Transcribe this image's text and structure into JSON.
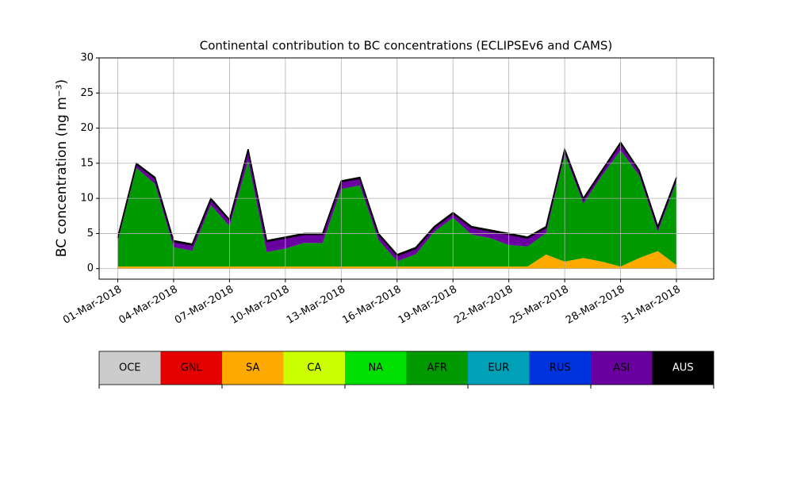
{
  "chart_data": {
    "type": "area",
    "stacked": true,
    "title": "Continental contribution to BC concentrations (ECLIPSEv6 and CAMS)",
    "ylabel": "BC concentration (ng m⁻³)",
    "x": [
      "01-Mar-2018",
      "02-Mar-2018",
      "03-Mar-2018",
      "04-Mar-2018",
      "05-Mar-2018",
      "06-Mar-2018",
      "07-Mar-2018",
      "08-Mar-2018",
      "09-Mar-2018",
      "10-Mar-2018",
      "11-Mar-2018",
      "12-Mar-2018",
      "13-Mar-2018",
      "14-Mar-2018",
      "15-Mar-2018",
      "16-Mar-2018",
      "17-Mar-2018",
      "18-Mar-2018",
      "19-Mar-2018",
      "20-Mar-2018",
      "21-Mar-2018",
      "22-Mar-2018",
      "23-Mar-2018",
      "24-Mar-2018",
      "25-Mar-2018",
      "26-Mar-2018",
      "27-Mar-2018",
      "28-Mar-2018",
      "29-Mar-2018",
      "30-Mar-2018",
      "31-Mar-2018"
    ],
    "xlim": [
      "28-Feb-2018",
      "02-Apr-2018"
    ],
    "xticks": [
      "01-Mar-2018",
      "04-Mar-2018",
      "07-Mar-2018",
      "10-Mar-2018",
      "13-Mar-2018",
      "16-Mar-2018",
      "19-Mar-2018",
      "22-Mar-2018",
      "25-Mar-2018",
      "28-Mar-2018",
      "31-Mar-2018"
    ],
    "ylim": [
      -1.5,
      30
    ],
    "yticks": [
      0,
      5,
      10,
      15,
      20,
      25,
      30
    ],
    "grid": true,
    "series": [
      {
        "name": "OCE",
        "color": "#cccccc",
        "values": [
          0,
          0,
          0,
          0,
          0,
          0,
          0,
          0,
          0,
          0,
          0,
          0,
          0,
          0,
          0,
          0,
          0,
          0,
          0,
          0,
          0,
          0,
          0,
          0,
          0,
          0,
          0,
          0,
          0,
          0,
          0
        ]
      },
      {
        "name": "GNL",
        "color": "#e60000",
        "values": [
          0,
          0,
          0,
          0,
          0,
          0,
          0,
          0,
          0,
          0,
          0,
          0,
          0,
          0,
          0,
          0,
          0,
          0,
          0,
          0,
          0,
          0,
          0,
          0,
          0,
          0,
          0,
          0,
          0,
          0,
          0
        ]
      },
      {
        "name": "SA",
        "color": "#ffaa00",
        "values": [
          0.3,
          0.3,
          0.3,
          0.3,
          0.3,
          0.3,
          0.3,
          0.3,
          0.3,
          0.3,
          0.3,
          0.3,
          0.3,
          0.3,
          0.3,
          0.3,
          0.3,
          0.3,
          0.3,
          0.3,
          0.3,
          0.3,
          0.3,
          2,
          1,
          1.5,
          1,
          0.3,
          1.5,
          2.5,
          0.5
        ]
      },
      {
        "name": "CA",
        "color": "#ccff00",
        "values": [
          0,
          0,
          0,
          0,
          0,
          0,
          0,
          0,
          0,
          0,
          0,
          0,
          0,
          0,
          0,
          0,
          0,
          0,
          0,
          0,
          0,
          0,
          0,
          0,
          0,
          0,
          0,
          0,
          0,
          0,
          0
        ]
      },
      {
        "name": "NA",
        "color": "#00e000",
        "values": [
          0,
          0,
          0,
          0,
          0,
          0,
          0,
          0,
          0,
          0,
          0,
          0,
          0,
          0,
          0,
          0,
          0,
          0,
          0,
          0,
          0,
          0,
          0,
          0,
          0,
          0,
          0,
          0,
          0,
          0,
          0
        ]
      },
      {
        "name": "AFR",
        "color": "#009900",
        "values": [
          3.55,
          14.05,
          11.75,
          2.75,
          2.25,
          8.75,
          5.75,
          15.05,
          2.05,
          2.55,
          3.35,
          3.35,
          11.05,
          11.55,
          3.75,
          0.75,
          1.75,
          4.95,
          6.95,
          4.55,
          4.05,
          3.05,
          2.85,
          3.05,
          15.25,
          7.75,
          12.25,
          16.55,
          11.75,
          2.75,
          11.85
        ]
      },
      {
        "name": "EUR",
        "color": "#00a0b8",
        "values": [
          0,
          0,
          0,
          0,
          0,
          0,
          0,
          0,
          0,
          0,
          0,
          0,
          0,
          0,
          0,
          0,
          0,
          0,
          0,
          0,
          0,
          0,
          0,
          0,
          0,
          0,
          0,
          0,
          0,
          0,
          0
        ]
      },
      {
        "name": "RUS",
        "color": "#0033dd",
        "values": [
          0,
          0,
          0,
          0,
          0,
          0,
          0,
          0,
          0,
          0,
          0,
          0,
          0,
          0,
          0,
          0,
          0,
          0,
          0,
          0,
          0,
          0,
          0,
          0,
          0,
          0,
          0,
          0,
          0,
          0,
          0
        ]
      },
      {
        "name": "ASI",
        "color": "#6a00a0",
        "values": [
          0.5,
          0.5,
          0.8,
          0.8,
          0.8,
          0.8,
          0.8,
          1.5,
          1.5,
          1.5,
          1.2,
          1.2,
          1,
          1,
          0.8,
          0.8,
          0.8,
          0.6,
          0.6,
          1,
          1,
          1.5,
          1.2,
          0.8,
          0.6,
          0.6,
          0.6,
          1,
          0.6,
          0.6,
          0.5
        ]
      },
      {
        "name": "AUS",
        "color": "#000000",
        "values": [
          0.15,
          0.15,
          0.15,
          0.15,
          0.15,
          0.15,
          0.15,
          0.15,
          0.15,
          0.15,
          0.15,
          0.15,
          0.15,
          0.15,
          0.15,
          0.15,
          0.15,
          0.15,
          0.15,
          0.15,
          0.15,
          0.15,
          0.15,
          0.15,
          0.15,
          0.15,
          0.15,
          0.15,
          0.15,
          0.15,
          0.15
        ]
      }
    ]
  }
}
